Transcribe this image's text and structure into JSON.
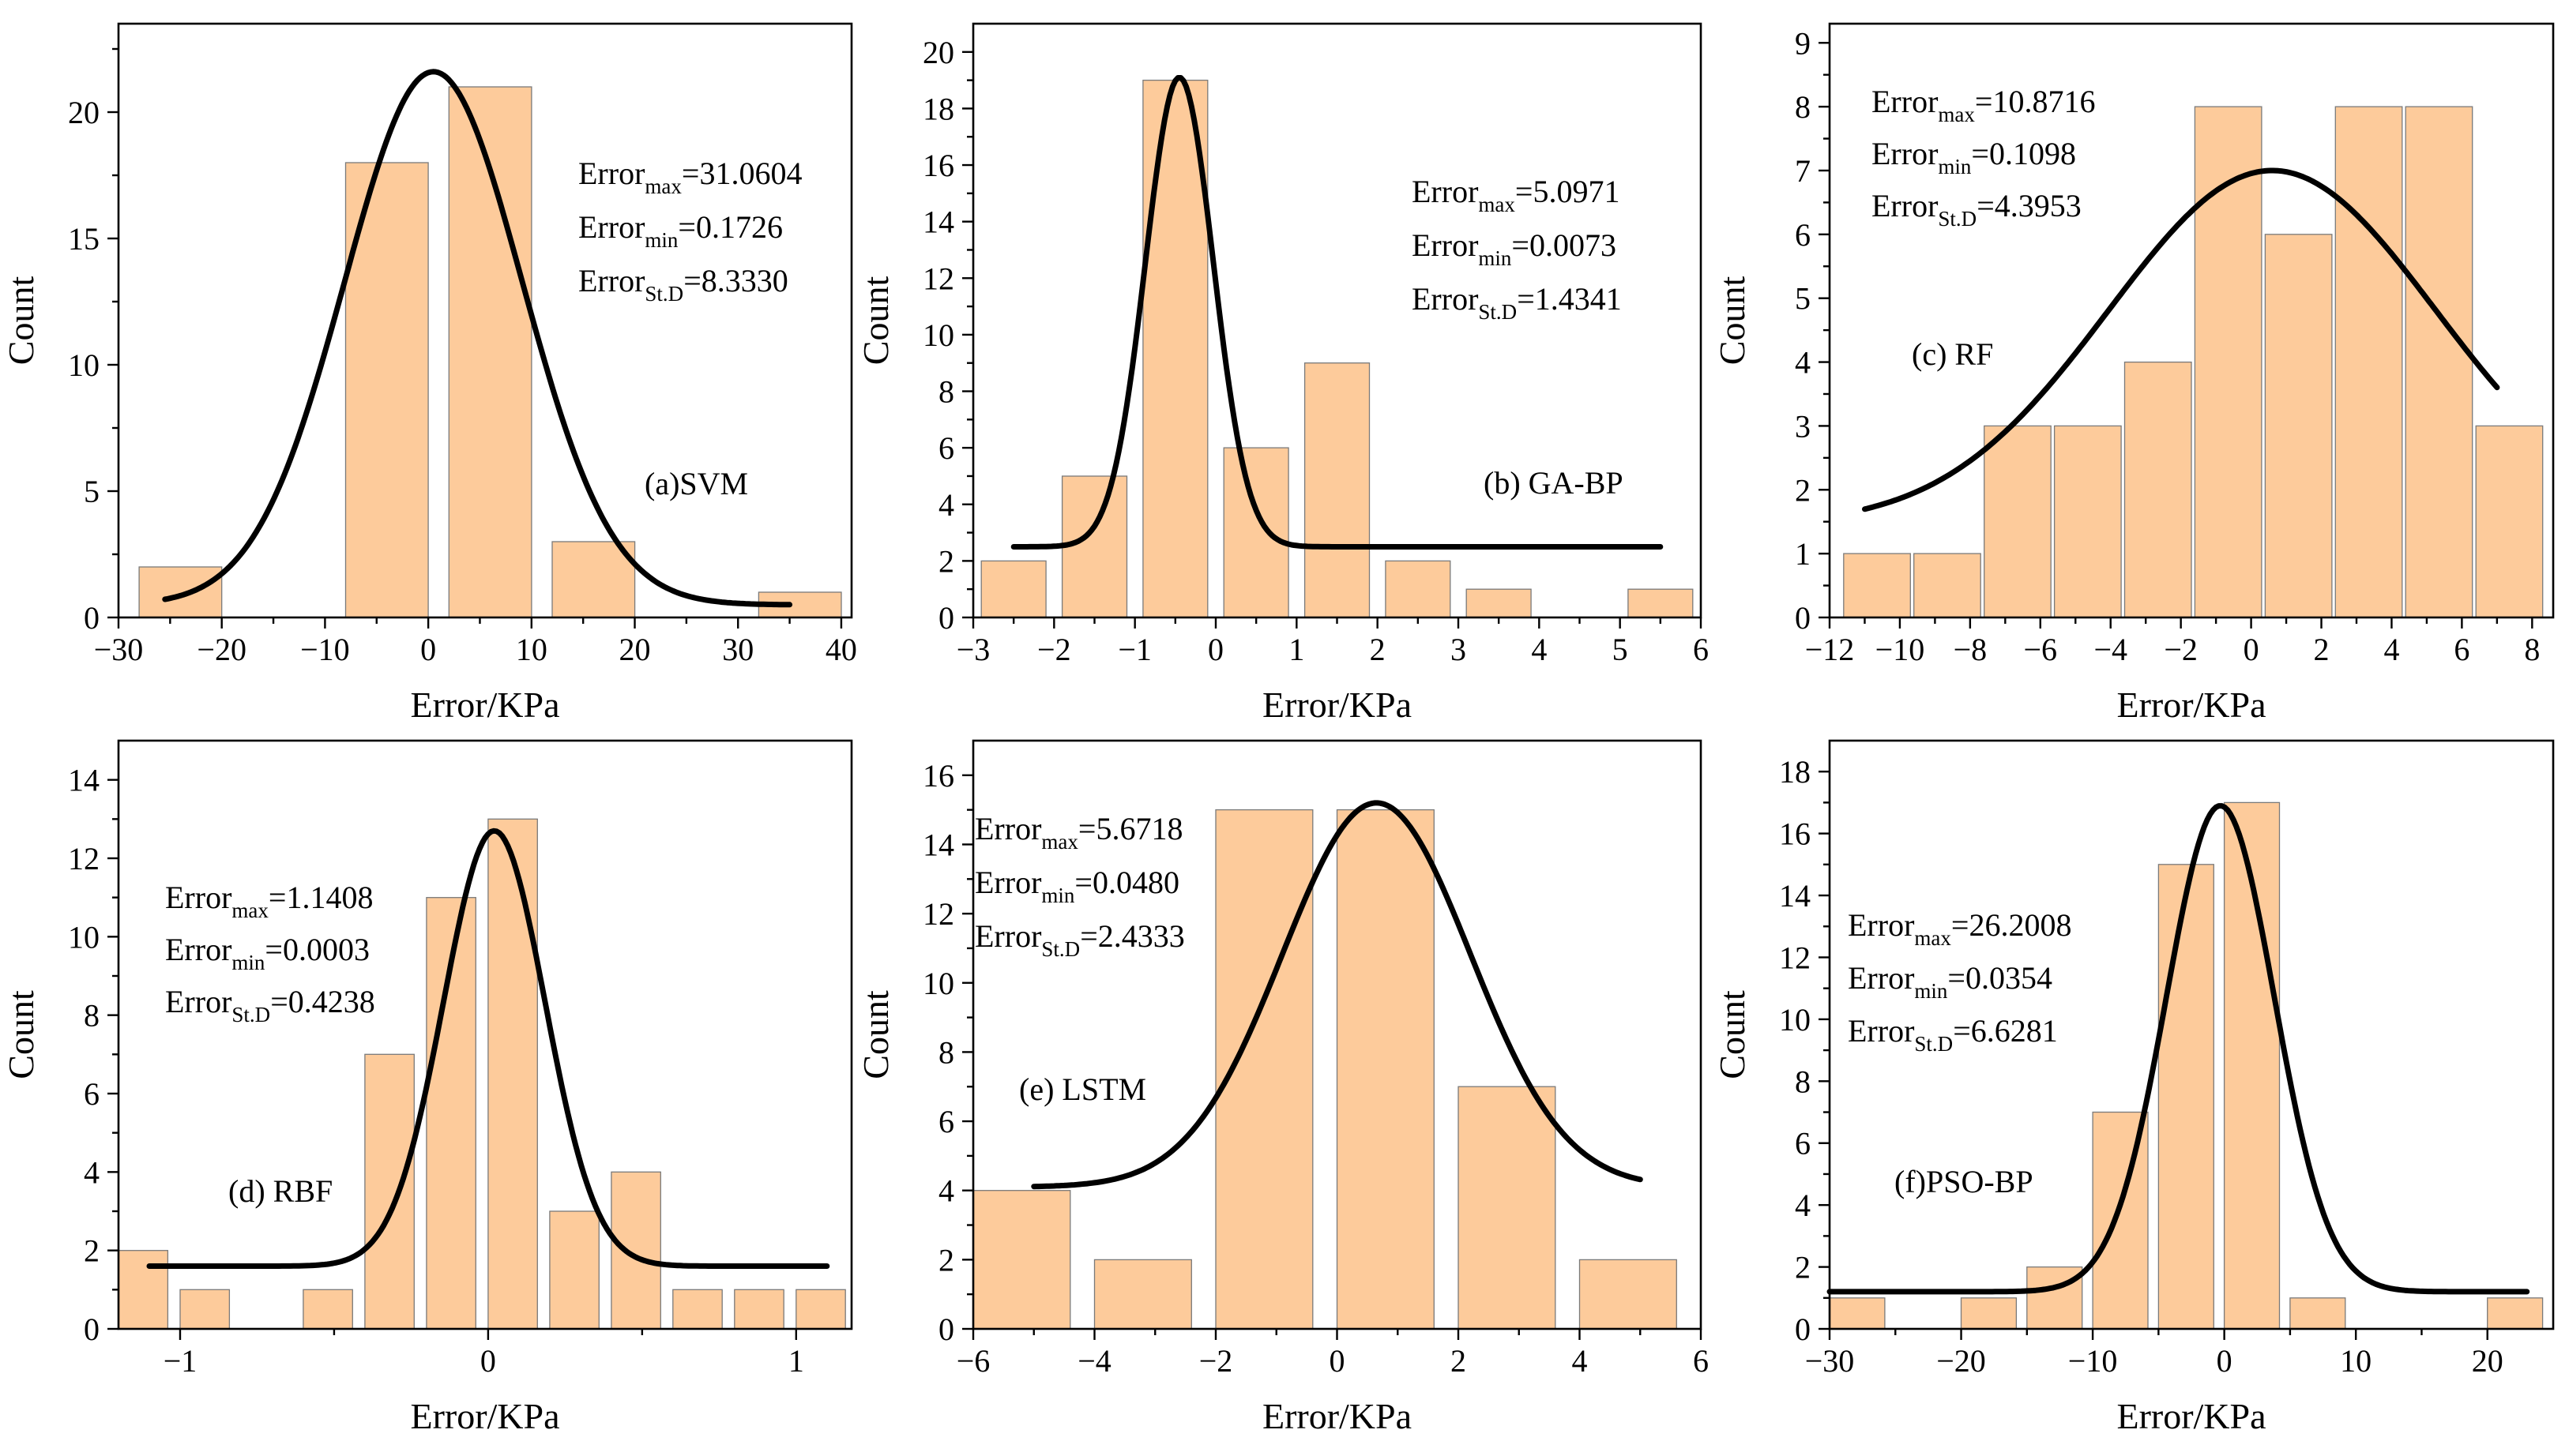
{
  "figure": {
    "colors": {
      "bar": "#FDCB9B",
      "bar_edge": "#7a7a7a",
      "curve": "#000000",
      "axis": "#000000"
    }
  },
  "chart_data": [
    {
      "type": "bar",
      "id": "a",
      "panel_label": "(a)SVM",
      "xlabel": "Error/KPa",
      "ylabel": "Count",
      "xlim": [
        -30,
        41
      ],
      "ylim": [
        0,
        23.5
      ],
      "xticks": [
        -30,
        -20,
        -10,
        0,
        10,
        20,
        30,
        40
      ],
      "yticks": [
        0,
        5,
        10,
        15,
        20
      ],
      "bins": [
        {
          "x0": -28,
          "x1": -20,
          "count": 2
        },
        {
          "x0": -8,
          "x1": 0,
          "count": 18
        },
        {
          "x0": 2,
          "x1": 10,
          "count": 21
        },
        {
          "x0": 12,
          "x1": 20,
          "count": 3
        },
        {
          "x0": 32,
          "x1": 40,
          "count": 1
        }
      ],
      "fit": {
        "x_from": -25.5,
        "x_to": 35,
        "base": 0.5,
        "amp": 21.1,
        "mean": 0.5,
        "sd": 8.6
      },
      "stats": [
        {
          "label": "Error",
          "sub": "max",
          "value": "=31.0604"
        },
        {
          "label": "Error",
          "sub": "min",
          "value": "=0.1726"
        },
        {
          "label": "Error",
          "sub": "St.D",
          "value": "=8.3330"
        }
      ]
    },
    {
      "type": "bar",
      "id": "b",
      "panel_label": "(b) GA-BP",
      "xlabel": "Error/KPa",
      "ylabel": "Count",
      "xlim": [
        -3,
        6
      ],
      "ylim": [
        0,
        21
      ],
      "xticks": [
        -3,
        -2,
        -1,
        0,
        1,
        2,
        3,
        4,
        5,
        6
      ],
      "yticks": [
        0,
        2,
        4,
        6,
        8,
        10,
        12,
        14,
        16,
        18,
        20
      ],
      "bins": [
        {
          "x0": -2.9,
          "x1": -2.1,
          "count": 2
        },
        {
          "x0": -1.9,
          "x1": -1.1,
          "count": 5
        },
        {
          "x0": -0.9,
          "x1": -0.1,
          "count": 19
        },
        {
          "x0": 0.1,
          "x1": 0.9,
          "count": 6
        },
        {
          "x0": 1.1,
          "x1": 1.9,
          "count": 9
        },
        {
          "x0": 2.1,
          "x1": 2.9,
          "count": 2
        },
        {
          "x0": 3.1,
          "x1": 3.9,
          "count": 1
        },
        {
          "x0": 5.1,
          "x1": 5.9,
          "count": 1
        }
      ],
      "fit": {
        "x_from": -2.5,
        "x_to": 5.5,
        "base": 2.5,
        "amp": 16.6,
        "mean": -0.45,
        "sd": 0.42
      },
      "stats": [
        {
          "label": "Error",
          "sub": "max",
          "value": "=5.0971"
        },
        {
          "label": "Error",
          "sub": "min",
          "value": "=0.0073"
        },
        {
          "label": "Error",
          "sub": "St.D",
          "value": "=1.4341"
        }
      ]
    },
    {
      "type": "bar",
      "id": "c",
      "panel_label": "(c) RF",
      "xlabel": "Error/KPa",
      "ylabel": "Count",
      "xlim": [
        -12,
        8.6
      ],
      "ylim": [
        0,
        9.3
      ],
      "xticks": [
        -12,
        -10,
        -8,
        -6,
        -4,
        -2,
        0,
        2,
        4,
        6,
        8
      ],
      "yticks": [
        0,
        1,
        2,
        3,
        4,
        5,
        6,
        7,
        8,
        9
      ],
      "bins": [
        {
          "x0": -11.6,
          "x1": -9.7,
          "count": 1
        },
        {
          "x0": -9.6,
          "x1": -7.7,
          "count": 1
        },
        {
          "x0": -7.6,
          "x1": -5.7,
          "count": 3
        },
        {
          "x0": -5.6,
          "x1": -3.7,
          "count": 3
        },
        {
          "x0": -3.6,
          "x1": -1.7,
          "count": 4
        },
        {
          "x0": -1.6,
          "x1": 0.3,
          "count": 8
        },
        {
          "x0": 0.4,
          "x1": 2.3,
          "count": 6
        },
        {
          "x0": 2.4,
          "x1": 4.3,
          "count": 8
        },
        {
          "x0": 4.4,
          "x1": 6.3,
          "count": 8
        },
        {
          "x0": 6.4,
          "x1": 8.3,
          "count": 3
        }
      ],
      "fit": {
        "x_from": -11,
        "x_to": 7,
        "base": 1.45,
        "amp": 5.55,
        "mean": 0.6,
        "sd": 4.65
      },
      "stats": [
        {
          "label": "Error",
          "sub": "max",
          "value": "=10.8716"
        },
        {
          "label": "Error",
          "sub": "min",
          "value": "=0.1098"
        },
        {
          "label": "Error",
          "sub": "St.D",
          "value": "=4.3953"
        }
      ]
    },
    {
      "type": "bar",
      "id": "d",
      "panel_label": "(d) RBF",
      "xlabel": "Error/KPa",
      "ylabel": "Count",
      "xlim": [
        -1.2,
        1.18
      ],
      "ylim": [
        0,
        15
      ],
      "xticks": [
        -1,
        0,
        1
      ],
      "yticks": [
        0,
        2,
        4,
        6,
        8,
        10,
        12,
        14
      ],
      "bins": [
        {
          "x0": -1.2,
          "x1": -1.04,
          "count": 2
        },
        {
          "x0": -1.0,
          "x1": -0.84,
          "count": 1
        },
        {
          "x0": -0.6,
          "x1": -0.44,
          "count": 1
        },
        {
          "x0": -0.4,
          "x1": -0.24,
          "count": 7
        },
        {
          "x0": -0.2,
          "x1": -0.04,
          "count": 11
        },
        {
          "x0": 0.0,
          "x1": 0.16,
          "count": 13
        },
        {
          "x0": 0.2,
          "x1": 0.36,
          "count": 3
        },
        {
          "x0": 0.4,
          "x1": 0.56,
          "count": 4
        },
        {
          "x0": 0.6,
          "x1": 0.76,
          "count": 1
        },
        {
          "x0": 0.8,
          "x1": 0.96,
          "count": 1
        },
        {
          "x0": 1.0,
          "x1": 1.16,
          "count": 1
        }
      ],
      "fit": {
        "x_from": -1.1,
        "x_to": 1.1,
        "base": 1.6,
        "amp": 11.1,
        "mean": 0.02,
        "sd": 0.165
      },
      "stats": [
        {
          "label": "Error",
          "sub": "max",
          "value": "=1.1408"
        },
        {
          "label": "Error",
          "sub": "min",
          "value": "=0.0003"
        },
        {
          "label": "Error",
          "sub": "St.D",
          "value": "=0.4238"
        }
      ]
    },
    {
      "type": "bar",
      "id": "e",
      "panel_label": "(e) LSTM",
      "xlabel": "Error/KPa",
      "ylabel": "Count",
      "xlim": [
        -6,
        6
      ],
      "ylim": [
        0,
        17
      ],
      "xticks": [
        -6,
        -4,
        -2,
        0,
        2,
        4,
        6
      ],
      "yticks": [
        0,
        2,
        4,
        6,
        8,
        10,
        12,
        14,
        16
      ],
      "bins": [
        {
          "x0": -6,
          "x1": -4.4,
          "count": 4
        },
        {
          "x0": -4,
          "x1": -2.4,
          "count": 2
        },
        {
          "x0": -2,
          "x1": -0.4,
          "count": 15
        },
        {
          "x0": 0,
          "x1": 1.6,
          "count": 15
        },
        {
          "x0": 2,
          "x1": 3.6,
          "count": 7
        },
        {
          "x0": 4,
          "x1": 5.6,
          "count": 2
        }
      ],
      "fit": {
        "x_from": -5,
        "x_to": 5,
        "base": 4.1,
        "amp": 11.1,
        "mean": 0.65,
        "sd": 1.55
      },
      "stats": [
        {
          "label": "Error",
          "sub": "max",
          "value": "=5.6718"
        },
        {
          "label": "Error",
          "sub": "min",
          "value": "=0.0480"
        },
        {
          "label": "Error",
          "sub": "St.D",
          "value": "=2.4333"
        }
      ]
    },
    {
      "type": "bar",
      "id": "f",
      "panel_label": "(f)PSO-BP",
      "xlabel": "Error/KPa",
      "ylabel": "Count",
      "xlim": [
        -30,
        25
      ],
      "ylim": [
        0,
        19
      ],
      "xticks": [
        -30,
        -20,
        -10,
        0,
        10,
        20
      ],
      "yticks": [
        0,
        2,
        4,
        6,
        8,
        10,
        12,
        14,
        16,
        18
      ],
      "bins": [
        {
          "x0": -30,
          "x1": -25.8,
          "count": 1
        },
        {
          "x0": -20,
          "x1": -15.8,
          "count": 1
        },
        {
          "x0": -15,
          "x1": -10.8,
          "count": 2
        },
        {
          "x0": -10,
          "x1": -5.8,
          "count": 7
        },
        {
          "x0": -5,
          "x1": -0.8,
          "count": 15
        },
        {
          "x0": 0,
          "x1": 4.2,
          "count": 17
        },
        {
          "x0": 5,
          "x1": 9.2,
          "count": 1
        },
        {
          "x0": 20,
          "x1": 24.2,
          "count": 1
        }
      ],
      "fit": {
        "x_from": -30,
        "x_to": 23,
        "base": 1.2,
        "amp": 15.7,
        "mean": -0.3,
        "sd": 4.1
      },
      "stats": [
        {
          "label": "Error",
          "sub": "max",
          "value": "=26.2008"
        },
        {
          "label": "Error",
          "sub": "min",
          "value": "=0.0354"
        },
        {
          "label": "Error",
          "sub": "St.D",
          "value": "=6.6281"
        }
      ]
    }
  ]
}
